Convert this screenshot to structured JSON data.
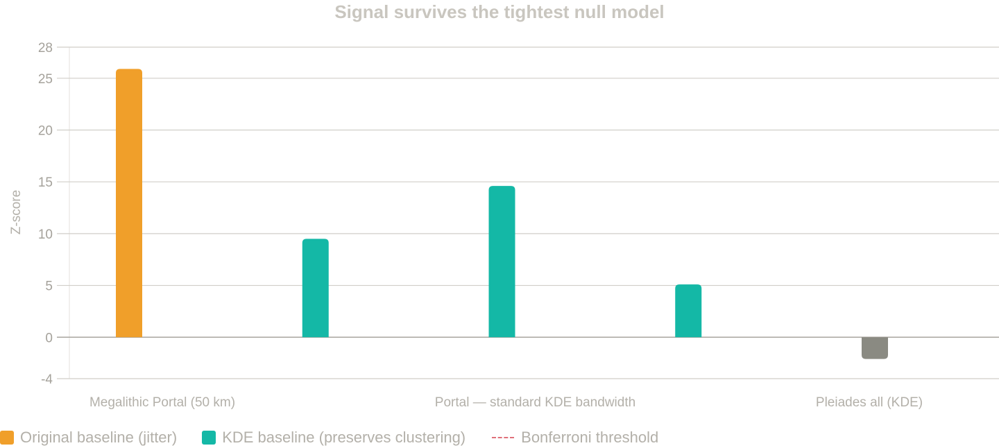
{
  "chart_data": {
    "type": "bar",
    "title": "Signal survives the tightest null model",
    "ylabel": "Z-score",
    "ylim": [
      -4,
      28
    ],
    "yticks": [
      -4,
      0,
      5,
      10,
      15,
      20,
      25,
      28
    ],
    "categories": [
      "Megalithic Portal (50 km)",
      "",
      "Portal — standard KDE bandwidth",
      "",
      "Pleiades all (KDE)"
    ],
    "bars": [
      {
        "category_index": 0,
        "value": 25.9,
        "series": "original"
      },
      {
        "category_index": 1,
        "value": 9.5,
        "series": "kde"
      },
      {
        "category_index": 2,
        "value": 14.6,
        "series": "kde"
      },
      {
        "category_index": 3,
        "value": 5.1,
        "series": "kde"
      },
      {
        "category_index": 4,
        "value": -2.1,
        "series": "negative"
      }
    ],
    "grid": true,
    "legend_placement": "bottom-left"
  },
  "legend": {
    "items": [
      {
        "label": "Original baseline (jitter)",
        "color": "#f09f2a"
      },
      {
        "label": "KDE baseline (preserves clustering)",
        "color": "#14b8a6"
      },
      {
        "label": "Bonferroni threshold",
        "color": "#e0707a"
      }
    ]
  },
  "colors": {
    "original": "#f09f2a",
    "kde": "#14b8a6",
    "negative": "#8a8a82",
    "grid": "#d0cec8",
    "zero_line": "#a8a69f"
  }
}
